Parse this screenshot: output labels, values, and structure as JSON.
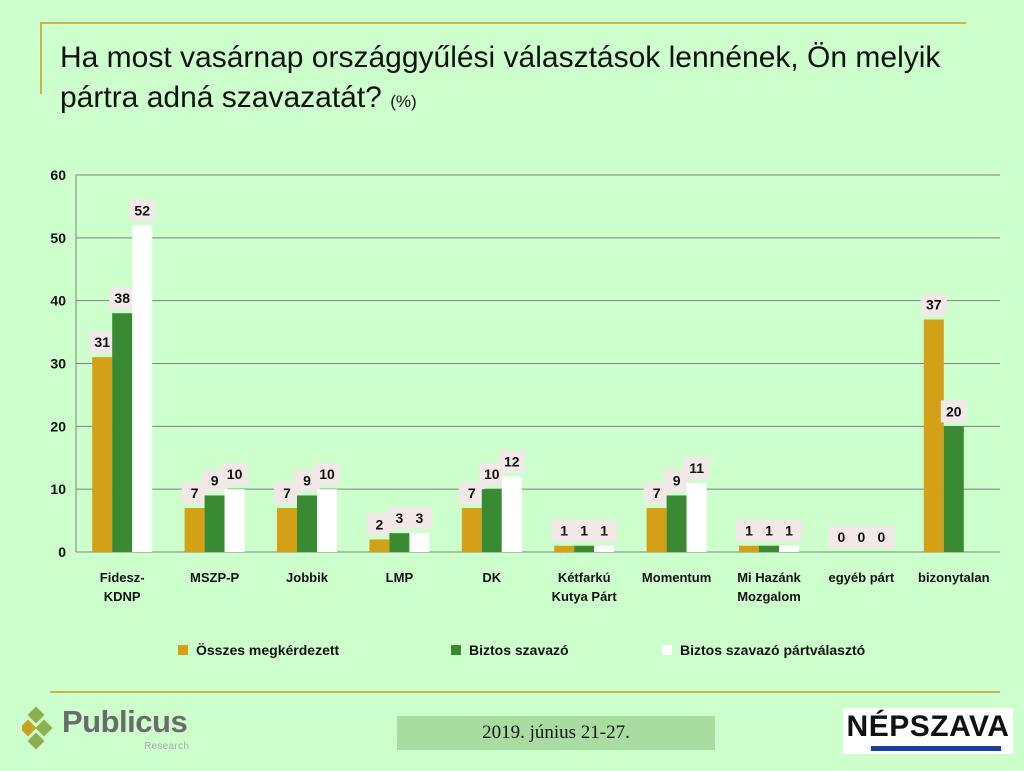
{
  "title": {
    "main": "Ha most vasárnap országgyűlési választások lennének, Ön melyik pártra adná szavazatát?",
    "unit": "(%)"
  },
  "chart_data": {
    "type": "bar",
    "categories": [
      "Fidesz-\nKDNP",
      "MSZP-P",
      "Jobbik",
      "LMP",
      "DK",
      "Kétfarkú\nKutya Párt",
      "Momentum",
      "Mi Hazánk\nMozgalom",
      "egyéb párt",
      "bizonytalan"
    ],
    "series": [
      {
        "name": "Összes megkérdezett",
        "color": "#d4a017",
        "values": [
          31,
          7,
          7,
          2,
          7,
          1,
          7,
          1,
          0,
          37
        ]
      },
      {
        "name": "Biztos szavazó",
        "color": "#3a8a33",
        "values": [
          38,
          9,
          9,
          3,
          10,
          1,
          9,
          1,
          0,
          20
        ]
      },
      {
        "name": "Biztos szavazó pártválasztó",
        "color": "#ffffff",
        "values": [
          52,
          10,
          10,
          3,
          12,
          1,
          11,
          1,
          0,
          null
        ]
      }
    ],
    "ylim": [
      0,
      60
    ],
    "yticks": [
      0,
      10,
      20,
      30,
      40,
      50,
      60
    ],
    "grid": true,
    "legend": "bottom"
  },
  "footer": {
    "logo_name": "Publicus",
    "logo_sub": "Research",
    "logo_icon": "diamond-cluster-icon",
    "date": "2019. június 21-27.",
    "partner": "NÉPSZAVA"
  }
}
